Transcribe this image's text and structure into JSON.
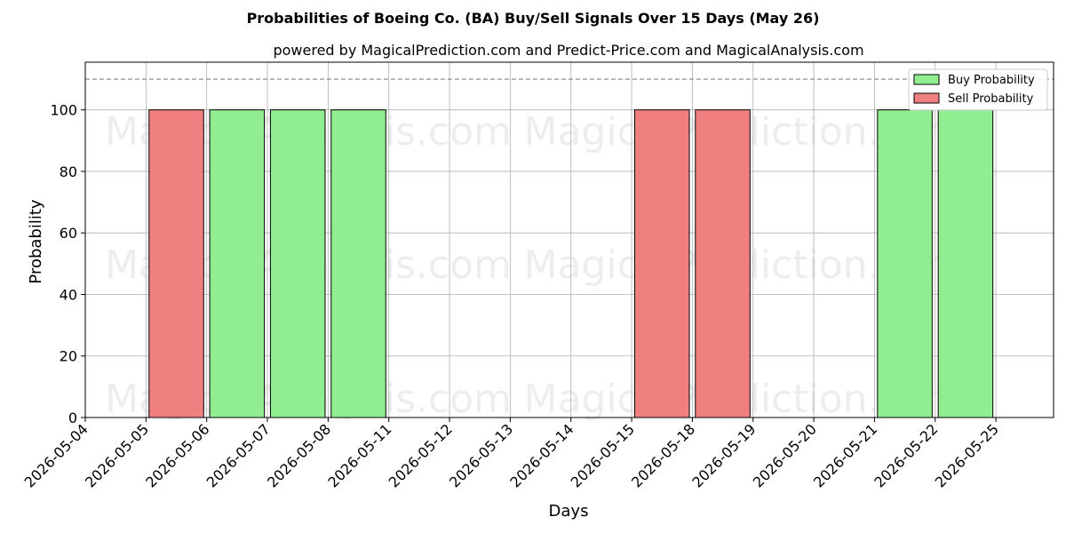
{
  "chart_data": {
    "type": "bar",
    "title": "Probabilities of Boeing Co. (BA) Buy/Sell Signals Over 15 Days (May 26)",
    "subtitle": "powered by MagicalPrediction.com and Predict-Price.com and MagicalAnalysis.com",
    "xlabel": "Days",
    "ylabel": "Probability",
    "ylim": [
      0,
      115.5
    ],
    "yticks": [
      0,
      20,
      40,
      60,
      80,
      100
    ],
    "categories": [
      "2026-05-04",
      "2026-05-05",
      "2026-05-06",
      "2026-05-07",
      "2026-05-08",
      "2026-05-11",
      "2026-05-12",
      "2026-05-13",
      "2026-05-14",
      "2026-05-15",
      "2026-05-18",
      "2026-05-19",
      "2026-05-20",
      "2026-05-21",
      "2026-05-22",
      "2026-05-25"
    ],
    "series": [
      {
        "name": "Buy Probability",
        "color": "#90ee90",
        "bars": [
          {
            "category": "2026-05-06",
            "value": 100
          },
          {
            "category": "2026-05-07",
            "value": 100
          },
          {
            "category": "2026-05-08",
            "value": 100
          },
          {
            "category": "2026-05-21",
            "value": 100
          },
          {
            "category": "2026-05-22",
            "value": 100
          }
        ]
      },
      {
        "name": "Sell Probability",
        "color": "#f08080",
        "bars": [
          {
            "category": "2026-05-05",
            "value": 100
          },
          {
            "category": "2026-05-15",
            "value": 100
          },
          {
            "category": "2026-05-18",
            "value": 100
          }
        ]
      }
    ],
    "reference_line": {
      "value": 110,
      "style": "dashed",
      "color": "#808080"
    },
    "legend_position": "top-right",
    "grid": true
  },
  "watermarks": [
    "MagicalAnalysis.com",
    "MagicalPrediction.com",
    "MagicalAnalysis.com",
    "MagicalPrediction.com",
    "MagicalAnalysis.com",
    "MagicalPrediction.com"
  ]
}
